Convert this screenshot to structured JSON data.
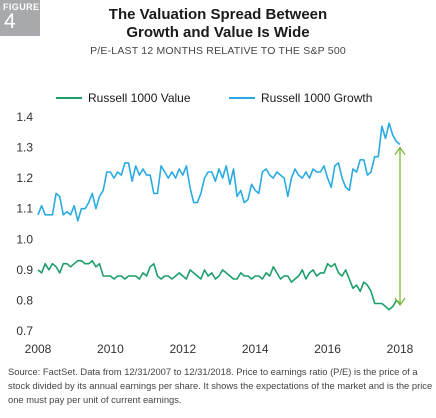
{
  "figure": {
    "label": "FIGURE",
    "number": "4"
  },
  "title_line1": "The Valuation Spread Between",
  "title_line2": "Growth and Value Is Wide",
  "subtitle": "P/E-LAST 12 MONTHS RELATIVE TO THE S&P 500",
  "source": "Source: FactSet. Data from 12/31/2007 to 12/31/2018. Price to earnings ratio (P/E) is the price of a stock divided by its annual earnings per share. It shows the expectations of the market and is the price one must pay per unit of current earnings.",
  "colors": {
    "value": "#1e9e6a",
    "growth": "#29abe2",
    "arrow": "#7ab839",
    "badge": "#a7a9ac"
  },
  "chart_data": {
    "type": "line",
    "title": "The Valuation Spread Between Growth and Value Is Wide",
    "subtitle": "P/E-LAST 12 MONTHS RELATIVE TO THE S&P 500",
    "xlim": [
      2008,
      2018.1
    ],
    "ylim": [
      0.7,
      1.4
    ],
    "x_ticks": [
      "2008",
      "2010",
      "2012",
      "2014",
      "2016",
      "2018"
    ],
    "y_ticks": [
      "0.7",
      "0.8",
      "0.9",
      "1.0",
      "1.1",
      "1.2",
      "1.3",
      "1.4"
    ],
    "grid": false,
    "legend": "top",
    "annotation": "double-headed arrow at 2018 between 0.78 and 1.30",
    "series": [
      {
        "name": "Russell 1000 Value",
        "color": "#1e9e6a",
        "x": [
          2008.0,
          2008.1,
          2008.2,
          2008.3,
          2008.4,
          2008.5,
          2008.6,
          2008.7,
          2008.8,
          2008.9,
          2009.0,
          2009.1,
          2009.2,
          2009.3,
          2009.4,
          2009.5,
          2009.6,
          2009.7,
          2009.8,
          2009.9,
          2010.0,
          2010.1,
          2010.2,
          2010.3,
          2010.4,
          2010.5,
          2010.6,
          2010.7,
          2010.8,
          2010.9,
          2011.0,
          2011.1,
          2011.2,
          2011.3,
          2011.4,
          2011.5,
          2011.6,
          2011.7,
          2011.8,
          2011.9,
          2012.0,
          2012.1,
          2012.2,
          2012.3,
          2012.4,
          2012.5,
          2012.6,
          2012.7,
          2012.8,
          2012.9,
          2013.0,
          2013.1,
          2013.2,
          2013.3,
          2013.4,
          2013.5,
          2013.6,
          2013.7,
          2013.8,
          2013.9,
          2014.0,
          2014.1,
          2014.2,
          2014.3,
          2014.4,
          2014.5,
          2014.6,
          2014.7,
          2014.8,
          2014.9,
          2015.0,
          2015.1,
          2015.2,
          2015.3,
          2015.4,
          2015.5,
          2015.6,
          2015.7,
          2015.8,
          2015.9,
          2016.0,
          2016.1,
          2016.2,
          2016.3,
          2016.4,
          2016.5,
          2016.6,
          2016.7,
          2016.8,
          2016.9,
          2017.0,
          2017.1,
          2017.2,
          2017.3,
          2017.4,
          2017.5,
          2017.6,
          2017.7,
          2017.8,
          2017.9,
          2018.0
        ],
        "values": [
          0.9,
          0.89,
          0.92,
          0.9,
          0.92,
          0.91,
          0.89,
          0.92,
          0.92,
          0.91,
          0.92,
          0.93,
          0.93,
          0.92,
          0.92,
          0.93,
          0.91,
          0.92,
          0.88,
          0.88,
          0.88,
          0.87,
          0.88,
          0.88,
          0.87,
          0.88,
          0.88,
          0.88,
          0.87,
          0.89,
          0.88,
          0.91,
          0.92,
          0.88,
          0.87,
          0.88,
          0.88,
          0.87,
          0.88,
          0.89,
          0.88,
          0.87,
          0.9,
          0.89,
          0.88,
          0.87,
          0.9,
          0.88,
          0.89,
          0.87,
          0.88,
          0.9,
          0.89,
          0.88,
          0.87,
          0.87,
          0.89,
          0.88,
          0.88,
          0.87,
          0.88,
          0.88,
          0.87,
          0.89,
          0.88,
          0.91,
          0.89,
          0.87,
          0.88,
          0.88,
          0.86,
          0.87,
          0.88,
          0.9,
          0.87,
          0.89,
          0.9,
          0.88,
          0.89,
          0.89,
          0.92,
          0.91,
          0.92,
          0.89,
          0.88,
          0.9,
          0.87,
          0.84,
          0.85,
          0.83,
          0.86,
          0.85,
          0.83,
          0.79,
          0.79,
          0.79,
          0.78,
          0.77,
          0.78,
          0.8,
          0.79
        ]
      },
      {
        "name": "Russell 1000 Growth",
        "color": "#29abe2",
        "x": [
          2008.0,
          2008.1,
          2008.2,
          2008.3,
          2008.4,
          2008.5,
          2008.6,
          2008.7,
          2008.8,
          2008.9,
          2009.0,
          2009.1,
          2009.2,
          2009.3,
          2009.4,
          2009.5,
          2009.6,
          2009.7,
          2009.8,
          2009.9,
          2010.0,
          2010.1,
          2010.2,
          2010.3,
          2010.4,
          2010.5,
          2010.6,
          2010.7,
          2010.8,
          2010.9,
          2011.0,
          2011.1,
          2011.2,
          2011.3,
          2011.4,
          2011.5,
          2011.6,
          2011.7,
          2011.8,
          2011.9,
          2012.0,
          2012.1,
          2012.2,
          2012.3,
          2012.4,
          2012.5,
          2012.6,
          2012.7,
          2012.8,
          2012.9,
          2013.0,
          2013.1,
          2013.2,
          2013.3,
          2013.4,
          2013.5,
          2013.6,
          2013.7,
          2013.8,
          2013.9,
          2014.0,
          2014.1,
          2014.2,
          2014.3,
          2014.4,
          2014.5,
          2014.6,
          2014.7,
          2014.8,
          2014.9,
          2015.0,
          2015.1,
          2015.2,
          2015.3,
          2015.4,
          2015.5,
          2015.6,
          2015.7,
          2015.8,
          2015.9,
          2016.0,
          2016.1,
          2016.2,
          2016.3,
          2016.4,
          2016.5,
          2016.6,
          2016.7,
          2016.8,
          2016.9,
          2017.0,
          2017.1,
          2017.2,
          2017.3,
          2017.4,
          2017.5,
          2017.6,
          2017.7,
          2017.8,
          2017.9,
          2018.0
        ],
        "values": [
          1.08,
          1.11,
          1.08,
          1.08,
          1.08,
          1.15,
          1.14,
          1.08,
          1.09,
          1.08,
          1.11,
          1.06,
          1.1,
          1.1,
          1.12,
          1.15,
          1.1,
          1.14,
          1.16,
          1.22,
          1.22,
          1.2,
          1.22,
          1.21,
          1.25,
          1.25,
          1.19,
          1.24,
          1.21,
          1.23,
          1.21,
          1.21,
          1.15,
          1.15,
          1.24,
          1.22,
          1.2,
          1.22,
          1.2,
          1.23,
          1.21,
          1.24,
          1.17,
          1.12,
          1.12,
          1.15,
          1.2,
          1.22,
          1.22,
          1.19,
          1.23,
          1.2,
          1.24,
          1.18,
          1.23,
          1.14,
          1.16,
          1.12,
          1.13,
          1.18,
          1.16,
          1.15,
          1.22,
          1.23,
          1.21,
          1.2,
          1.22,
          1.21,
          1.2,
          1.14,
          1.2,
          1.23,
          1.21,
          1.2,
          1.22,
          1.2,
          1.23,
          1.22,
          1.22,
          1.24,
          1.2,
          1.17,
          1.24,
          1.25,
          1.2,
          1.17,
          1.16,
          1.23,
          1.22,
          1.26,
          1.26,
          1.21,
          1.22,
          1.27,
          1.27,
          1.37,
          1.33,
          1.38,
          1.34,
          1.32,
          1.31
        ]
      }
    ]
  }
}
